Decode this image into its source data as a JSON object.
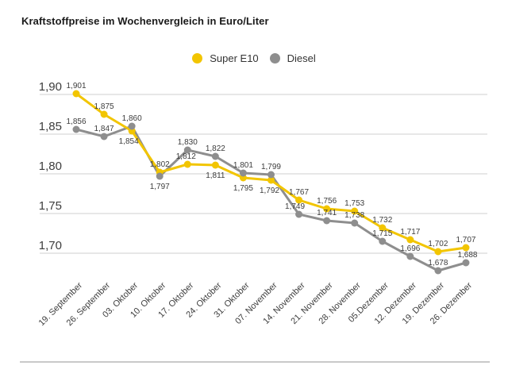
{
  "title": "Kraftstoffpreise im Wochenvergleich in Euro/Liter",
  "legend": {
    "items": [
      {
        "label": "Super E10",
        "color": "#F2C500"
      },
      {
        "label": "Diesel",
        "color": "#8E8E8E"
      }
    ],
    "position": "top-center"
  },
  "chart_data": {
    "type": "line",
    "title": "Kraftstoffpreise im Wochenvergleich in Euro/Liter",
    "categories": [
      "19. September",
      "26. September",
      "03. Oktober",
      "10. Oktober",
      "17. Oktober",
      "24. Oktober",
      "31. Oktober",
      "07. November",
      "14. November",
      "21. November",
      "28. November",
      "05.Dezember",
      "12. Dezember",
      "19. Dezember",
      "26. Dezember"
    ],
    "series": [
      {
        "name": "Super E10",
        "color": "#F2C500",
        "values": [
          1.901,
          1.875,
          1.854,
          1.802,
          1.812,
          1.811,
          1.795,
          1.792,
          1.767,
          1.756,
          1.753,
          1.732,
          1.717,
          1.702,
          1.707
        ]
      },
      {
        "name": "Diesel",
        "color": "#8E8E8E",
        "values": [
          1.856,
          1.847,
          1.86,
          1.797,
          1.83,
          1.822,
          1.801,
          1.799,
          1.749,
          1.741,
          1.738,
          1.715,
          1.696,
          1.678,
          1.688
        ]
      }
    ],
    "xlabel": "",
    "ylabel": "Euro/Liter",
    "ytick_labels": [
      "1,90",
      "1,85",
      "1,80",
      "1,75",
      "1,70"
    ],
    "ytick_values": [
      1.9,
      1.85,
      1.8,
      1.75,
      1.7
    ],
    "ylim": [
      1.7,
      1.9
    ],
    "grid": true,
    "decimal_separator": ",",
    "legend_position": "top-center",
    "colors": {
      "gridline": "#cfcfcf",
      "tick_label": "#3d3d3d",
      "data_label": "#3c3c3c",
      "divider": "#c9c9c9",
      "title": "#1a1a1a"
    }
  }
}
